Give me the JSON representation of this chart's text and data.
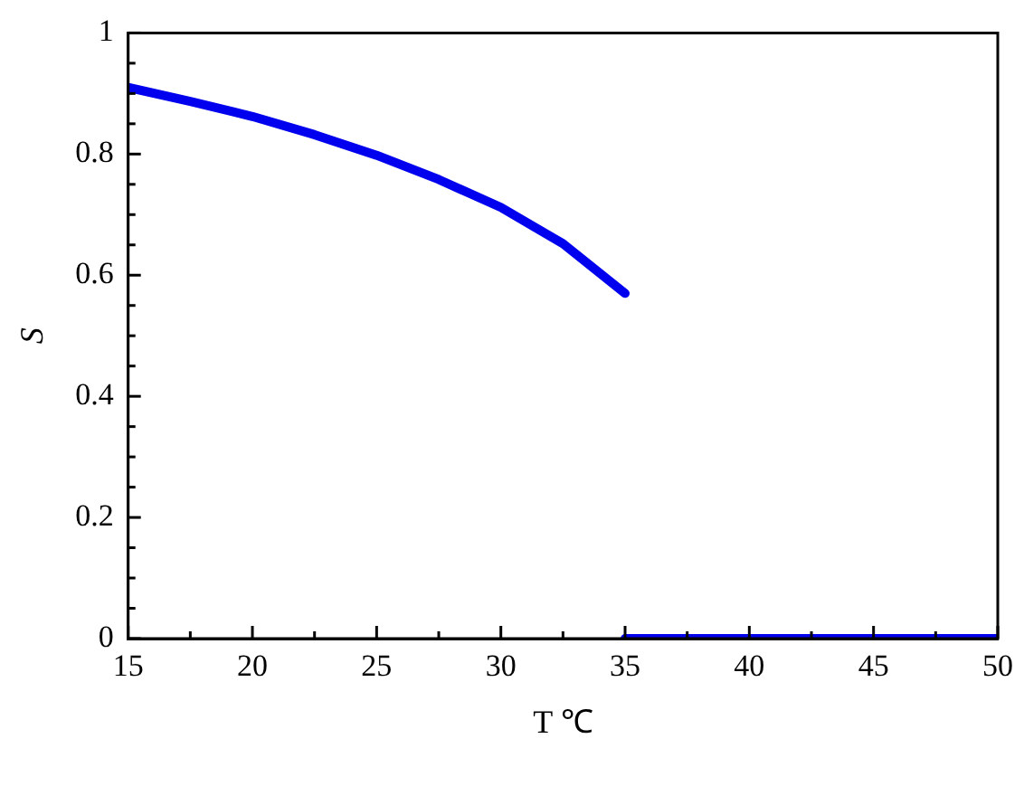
{
  "chart_data": {
    "type": "line",
    "xlabel": "T ℃",
    "ylabel": "S",
    "xlim": [
      15,
      50
    ],
    "xticks": [
      15,
      {
        "value": 17.5,
        "label": null
      },
      20,
      {
        "value": 22.5,
        "label": null
      },
      25,
      {
        "value": 27.5,
        "label": null
      },
      30,
      {
        "value": 32.5,
        "label": null
      },
      35,
      {
        "value": 37.5,
        "label": null
      },
      40,
      {
        "value": 42.5,
        "label": null
      },
      45,
      {
        "value": 47.5,
        "label": null
      },
      50
    ],
    "ylim": [
      0,
      1
    ],
    "yticks": [
      0,
      {
        "value": 0.05,
        "label": null
      },
      0.2,
      {
        "value": 0.1,
        "label": null
      },
      {
        "value": 0.15,
        "label": null
      },
      {
        "value": 0.25,
        "label": null
      },
      {
        "value": 0.3,
        "label": null
      },
      {
        "value": 0.35,
        "label": null
      },
      0.4,
      {
        "value": 0.45,
        "label": null
      },
      {
        "value": 0.5,
        "label": null
      },
      {
        "value": 0.55,
        "label": null
      },
      0.6,
      {
        "value": 0.65,
        "label": null
      },
      {
        "value": 0.7,
        "label": null
      },
      {
        "value": 0.75,
        "label": null
      },
      0.8,
      {
        "value": 0.85,
        "label": null
      },
      {
        "value": 0.9,
        "label": null
      },
      {
        "value": 0.95,
        "label": null
      },
      1
    ],
    "grid": false,
    "legend": false,
    "marker": "none",
    "line_style": "solid",
    "series": [
      {
        "color": "#0000ee",
        "x": [
          15,
          17.5,
          20,
          22.5,
          25,
          27.5,
          30,
          32.5,
          35
        ],
        "values": [
          0.91,
          0.887,
          0.862,
          0.832,
          0.798,
          0.758,
          0.712,
          0.652,
          0.57
        ]
      },
      {
        "color": "#0000ee",
        "x": [
          35,
          50
        ],
        "values": [
          0,
          0
        ]
      }
    ]
  }
}
